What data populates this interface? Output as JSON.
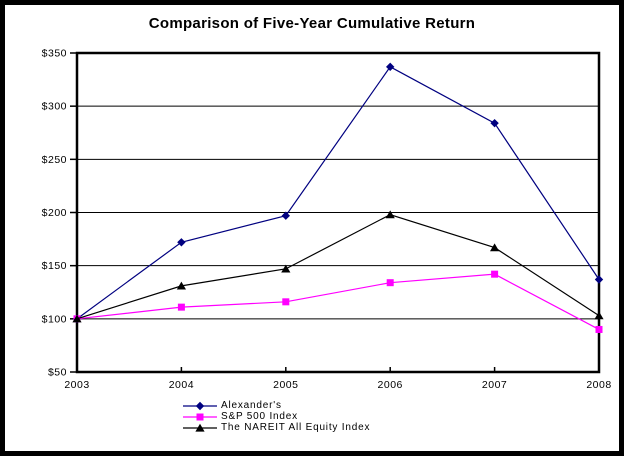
{
  "title": "Comparison of Five-Year Cumulative Return",
  "colors": {
    "background": "#FFFFFF",
    "frame": "#000000",
    "axis": "#000000",
    "gridline": "#000000",
    "alexanders": "#000080",
    "sp500": "#FF00FF",
    "nareit": "#000000"
  },
  "chart_data": {
    "type": "line",
    "title": "Comparison of Five-Year Cumulative Return",
    "x": [
      2003,
      2004,
      2005,
      2006,
      2007,
      2008
    ],
    "x_tick_labels": [
      "2003",
      "2004",
      "2005",
      "2006",
      "2007",
      "2008"
    ],
    "y_tick_labels": [
      "$350",
      "$300",
      "$250",
      "$200",
      "$150",
      "$100",
      "$50"
    ],
    "ylim": [
      50,
      350
    ],
    "y_tick_step": 50,
    "grid": "horizontal",
    "legend_position": "bottom-center",
    "series": [
      {
        "name": "Alexander's",
        "color": "#000080",
        "marker": "diamond",
        "values": [
          100,
          172,
          197,
          337,
          284,
          137
        ]
      },
      {
        "name": "S&P 500 Index",
        "color": "#FF00FF",
        "marker": "square",
        "values": [
          100,
          111,
          116,
          134,
          142,
          90
        ]
      },
      {
        "name": "The NAREIT All Equity Index",
        "color": "#000000",
        "marker": "triangle",
        "values": [
          100,
          131,
          147,
          198,
          167,
          103
        ]
      }
    ]
  }
}
